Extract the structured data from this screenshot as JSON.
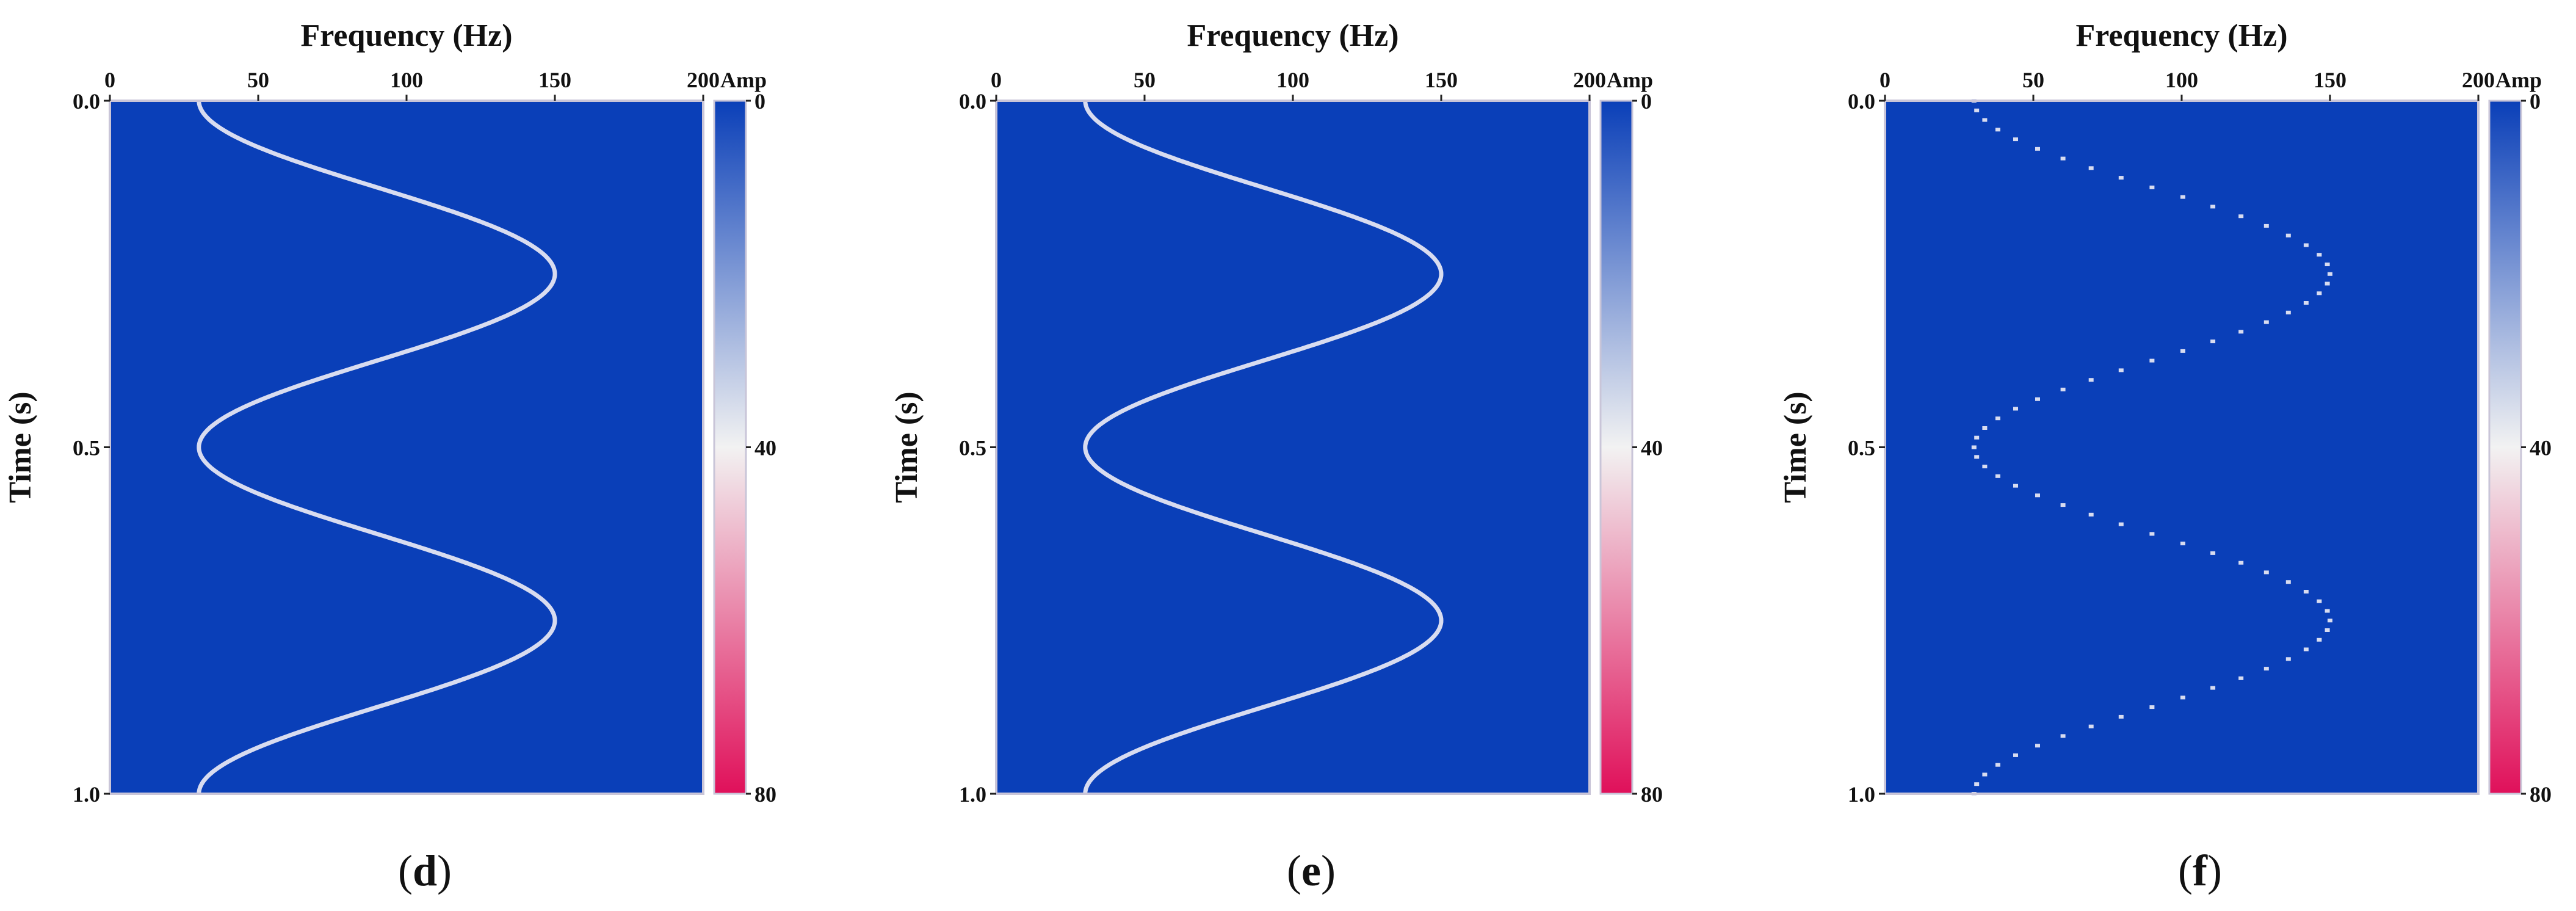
{
  "chart_data": [
    {
      "type": "heatmap",
      "panel_label": {
        "open": "(",
        "letter": "d",
        "close": ")"
      },
      "xlabel": "Frequency (Hz)",
      "ylabel": "Time (s)",
      "x_ticks": [
        0,
        50,
        100,
        150,
        200
      ],
      "y_ticks": [
        "0.0",
        "0.5",
        "1.0"
      ],
      "xlim": [
        0,
        200
      ],
      "ylim": [
        0,
        1
      ],
      "colorbar": {
        "title": "Amp",
        "ticks": [
          0,
          40,
          80
        ],
        "range": [
          0,
          80
        ]
      },
      "signal": {
        "center_hz": 90,
        "amplitude_hz": 60,
        "period_s": 0.5,
        "peak_amp": 40
      },
      "render": "continuous"
    },
    {
      "type": "heatmap",
      "panel_label": {
        "open": "(",
        "letter": "e",
        "close": ")"
      },
      "xlabel": "Frequency (Hz)",
      "ylabel": "Time (s)",
      "x_ticks": [
        0,
        50,
        100,
        150,
        200
      ],
      "y_ticks": [
        "0.0",
        "0.5",
        "1.0"
      ],
      "xlim": [
        0,
        200
      ],
      "ylim": [
        0,
        1
      ],
      "colorbar": {
        "title": "Amp",
        "ticks": [
          0,
          40,
          80
        ],
        "range": [
          0,
          80
        ]
      },
      "signal": {
        "center_hz": 90,
        "amplitude_hz": 60,
        "period_s": 0.5,
        "peak_amp": 40
      },
      "render": "continuous"
    },
    {
      "type": "heatmap",
      "panel_label": {
        "open": "(",
        "letter": "f",
        "close": ")"
      },
      "xlabel": "Frequency (Hz)",
      "ylabel": "Time (s)",
      "x_ticks": [
        0,
        50,
        100,
        150,
        200
      ],
      "y_ticks": [
        "0.0",
        "0.5",
        "1.0"
      ],
      "xlim": [
        0,
        200
      ],
      "ylim": [
        0,
        1
      ],
      "colorbar": {
        "title": "Amp",
        "ticks": [
          0,
          40,
          80
        ],
        "range": [
          0,
          80
        ]
      },
      "signal": {
        "center_hz": 90,
        "amplitude_hz": 60,
        "period_s": 0.5,
        "peak_amp": 40
      },
      "render": "sparse"
    }
  ],
  "colors": {
    "background": "#0a3fb8",
    "low": "#0a3fb8",
    "mid": "#f2f2f2",
    "high": "#e0105a",
    "curve": "#d8dcf0"
  }
}
